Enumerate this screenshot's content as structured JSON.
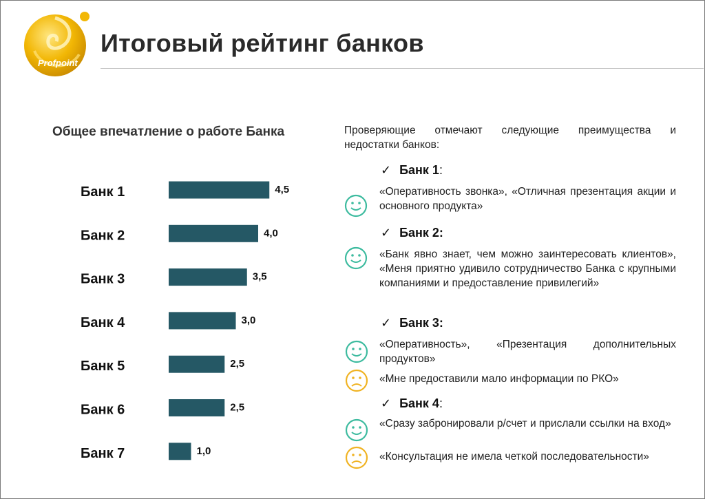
{
  "header": {
    "title": "Итоговый рейтинг банков",
    "logo_text": "Profpoint",
    "accent_color": "#f2b705"
  },
  "chart_data": {
    "type": "bar",
    "orientation": "horizontal",
    "title": "Общее впечатление о работе Банка",
    "categories": [
      "Банк 1",
      "Банк 2",
      "Банк 3",
      "Банк 4",
      "Банк 5",
      "Банк 6",
      "Банк 7"
    ],
    "values": [
      4.5,
      4.0,
      3.5,
      3.0,
      2.5,
      2.5,
      1.0
    ],
    "value_labels": [
      "4,5",
      "4,0",
      "3,5",
      "3,0",
      "2,5",
      "2,5",
      "1,0"
    ],
    "bar_color": "#255865",
    "xlim": [
      0,
      5
    ],
    "grid": false,
    "legend": "none"
  },
  "comments": {
    "intro_line1": "Проверяющие отмечают следующие преимущества и",
    "intro_line2": "недостатки банков:",
    "positive_color": "#3dbb9f",
    "negative_color": "#f0b323",
    "banks": [
      {
        "name": "Банк 1",
        "colon": ":",
        "items": [
          {
            "sentiment": "positive",
            "icon": "smiley-positive-icon",
            "text": "«Оперативность звонка», «Отличная презентация акции и основного продукта»"
          }
        ]
      },
      {
        "name": "Банк 2:",
        "colon": "",
        "items": [
          {
            "sentiment": "positive",
            "icon": "smiley-positive-icon",
            "text": "«Банк явно знает, чем можно заинтересовать клиентов», «Меня приятно удивило сотрудничество Банка с крупными компаниями и предоставление привилегий»"
          }
        ]
      },
      {
        "name": "Банк 3:",
        "colon": "",
        "items": [
          {
            "sentiment": "positive",
            "icon": "smiley-positive-icon",
            "text": "«Оперативность», «Презентация дополнительных продуктов»"
          },
          {
            "sentiment": "negative",
            "icon": "smiley-negative-icon",
            "text": "«Мне предоставили мало информации по РКО»"
          }
        ]
      },
      {
        "name": "Банк 4",
        "colon": ":",
        "items": [
          {
            "sentiment": "positive",
            "icon": "smiley-positive-icon",
            "text": "«Сразу забронировали р/счет и прислали ссылки на вход»"
          },
          {
            "sentiment": "negative",
            "icon": "smiley-negative-icon",
            "text": "«Консультация не имела четкой последовательности»"
          }
        ]
      }
    ]
  }
}
